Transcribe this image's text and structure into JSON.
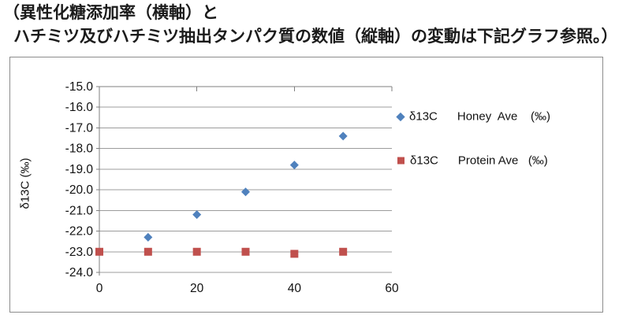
{
  "title": {
    "line1": "（異性化糖添加率（横軸）と",
    "line2": "ハチミツ及びハチミツ抽出タンパク質の数値（縦軸）の変動は下記グラフ参照。）"
  },
  "chart_data": {
    "type": "scatter",
    "title": "",
    "xlabel": "",
    "ylabel": "δ13C (‰)",
    "xlim": [
      0,
      60
    ],
    "ylim": [
      -24,
      -15
    ],
    "grid": "horizontal",
    "x_axis_line_position": "top",
    "legend_position": "right-inside",
    "axis_color": "#7f7f7f",
    "grid_color": "#9c9c9c",
    "x_ticks": [
      {
        "v": 0,
        "label": "0"
      },
      {
        "v": 20,
        "label": "20"
      },
      {
        "v": 40,
        "label": "40"
      },
      {
        "v": 60,
        "label": "60"
      }
    ],
    "y_ticks": [
      {
        "v": -15,
        "label": "-15.0"
      },
      {
        "v": -16,
        "label": "-16.0"
      },
      {
        "v": -17,
        "label": "-17.0"
      },
      {
        "v": -18,
        "label": "-18.0"
      },
      {
        "v": -19,
        "label": "-19.0"
      },
      {
        "v": -20,
        "label": "-20.0"
      },
      {
        "v": -21,
        "label": "-21.0"
      },
      {
        "v": -22,
        "label": "-22.0"
      },
      {
        "v": -23,
        "label": "-23.0"
      },
      {
        "v": -24,
        "label": "-24.0"
      }
    ],
    "series": [
      {
        "name": "δ13C Honey Ave (‰)",
        "legend": "δ13C      Honey  Ave    (‰)",
        "marker": "diamond",
        "color": "#4F81BD",
        "x": [
          10,
          20,
          30,
          40,
          50
        ],
        "y": [
          -22.3,
          -21.2,
          -20.1,
          -18.8,
          -17.4
        ]
      },
      {
        "name": "δ13C Protein Ave (‰)",
        "legend": "δ13C      Protein Ave   (‰)",
        "marker": "square",
        "color": "#C0504D",
        "x": [
          0,
          10,
          20,
          30,
          40,
          50
        ],
        "y": [
          -23.0,
          -23.0,
          -23.0,
          -23.0,
          -23.1,
          -23.0
        ]
      }
    ]
  }
}
